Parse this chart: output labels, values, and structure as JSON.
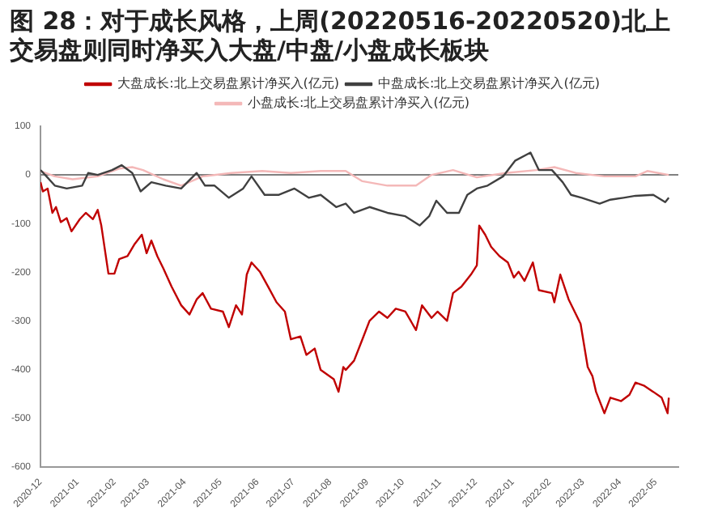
{
  "chart_data": {
    "type": "line",
    "title": "图 28：对于成长风格，上周(20220516-20220520)北上交易盘则同时净买入大盘/中盘/小盘成长板块",
    "xlim": [
      "2020-12",
      "2022-05-20"
    ],
    "xticks": [
      "2020-12",
      "2021-01",
      "2021-02",
      "2021-03",
      "2021-04",
      "2021-05",
      "2021-06",
      "2021-07",
      "2021-08",
      "2021-09",
      "2021-10",
      "2021-11",
      "2021-12",
      "2022-01",
      "2022-02",
      "2022-03",
      "2022-04",
      "2022-05"
    ],
    "ylim": [
      -600,
      100
    ],
    "yticks": [
      -600,
      -500,
      -400,
      -300,
      -200,
      -100,
      0,
      100
    ],
    "grid": false,
    "legend": "top",
    "marker": "none",
    "line_style": "solid",
    "ref_lines": [
      {
        "axis": "y",
        "value": 0,
        "color": "#808080"
      }
    ],
    "series": [
      {
        "name": "大盘成长:北上交易盘累计净买入(亿元)",
        "color": "#c00000",
        "x": [
          "2020-12-01",
          "2020-12-03",
          "2020-12-07",
          "2020-12-11",
          "2020-12-14",
          "2020-12-18",
          "2020-12-23",
          "2020-12-27",
          "2021-01-03",
          "2021-01-08",
          "2021-01-14",
          "2021-01-18",
          "2021-01-21",
          "2021-01-27",
          "2021-02-01",
          "2021-02-05",
          "2021-02-12",
          "2021-02-18",
          "2021-02-24",
          "2021-02-28",
          "2021-03-04",
          "2021-03-09",
          "2021-03-14",
          "2021-03-21",
          "2021-03-29",
          "2021-04-05",
          "2021-04-11",
          "2021-04-16",
          "2021-04-23",
          "2021-05-03",
          "2021-05-08",
          "2021-05-14",
          "2021-05-19",
          "2021-05-23",
          "2021-05-27",
          "2021-06-03",
          "2021-06-10",
          "2021-06-17",
          "2021-06-24",
          "2021-06-29",
          "2021-07-07",
          "2021-07-12",
          "2021-07-19",
          "2021-07-24",
          "2021-08-04",
          "2021-08-08",
          "2021-08-12",
          "2021-08-14",
          "2021-08-21",
          "2021-08-28",
          "2021-09-03",
          "2021-09-11",
          "2021-09-18",
          "2021-09-25",
          "2021-10-03",
          "2021-10-12",
          "2021-10-17",
          "2021-10-25",
          "2021-10-30",
          "2021-11-07",
          "2021-11-12",
          "2021-11-19",
          "2021-11-27",
          "2021-12-02",
          "2021-12-04",
          "2021-12-09",
          "2021-12-14",
          "2021-12-21",
          "2021-12-28",
          "2022-01-02",
          "2022-01-06",
          "2022-01-11",
          "2022-01-18",
          "2022-01-23",
          "2022-02-03",
          "2022-02-05",
          "2022-02-10",
          "2022-02-17",
          "2022-02-27",
          "2022-03-05",
          "2022-03-09",
          "2022-03-12",
          "2022-03-19",
          "2022-03-24",
          "2022-04-02",
          "2022-04-09",
          "2022-04-14",
          "2022-04-21",
          "2022-04-29",
          "2022-05-06",
          "2022-05-11",
          "2022-05-12"
        ],
        "values": [
          -15,
          -34,
          -28,
          -78,
          -66,
          -97,
          -89,
          -116,
          -91,
          -78,
          -91,
          -72,
          -104,
          -203,
          -203,
          -173,
          -167,
          -142,
          -123,
          -161,
          -135,
          -167,
          -192,
          -230,
          -268,
          -287,
          -256,
          -243,
          -275,
          -281,
          -313,
          -268,
          -287,
          -205,
          -180,
          -199,
          -230,
          -262,
          -281,
          -338,
          -332,
          -370,
          -357,
          -401,
          -420,
          -446,
          -395,
          -401,
          -382,
          -338,
          -300,
          -281,
          -294,
          -275,
          -281,
          -319,
          -268,
          -294,
          -281,
          -300,
          -243,
          -230,
          -205,
          -186,
          -104,
          -123,
          -148,
          -167,
          -180,
          -211,
          -199,
          -218,
          -180,
          -237,
          -243,
          -262,
          -205,
          -256,
          -306,
          -395,
          -414,
          -446,
          -490,
          -458,
          -465,
          -452,
          -427,
          -433,
          -446,
          -458,
          -490,
          -458
        ]
      },
      {
        "name": "中盘成长:北上交易盘累计净买入(亿元)",
        "color": "#404040",
        "x": [
          "2020-12-01",
          "2020-12-06",
          "2020-12-13",
          "2020-12-23",
          "2021-01-05",
          "2021-01-10",
          "2021-01-18",
          "2021-01-30",
          "2021-02-07",
          "2021-02-16",
          "2021-02-23",
          "2021-03-04",
          "2021-03-16",
          "2021-03-29",
          "2021-04-11",
          "2021-04-18",
          "2021-04-26",
          "2021-05-08",
          "2021-05-20",
          "2021-05-27",
          "2021-06-07",
          "2021-06-19",
          "2021-07-02",
          "2021-07-14",
          "2021-07-24",
          "2021-08-06",
          "2021-08-14",
          "2021-08-21",
          "2021-09-03",
          "2021-09-18",
          "2021-10-03",
          "2021-10-15",
          "2021-10-23",
          "2021-10-29",
          "2021-11-07",
          "2021-11-17",
          "2021-11-24",
          "2021-12-02",
          "2021-12-11",
          "2021-12-24",
          "2022-01-03",
          "2022-01-16",
          "2022-01-23",
          "2022-02-03",
          "2022-02-12",
          "2022-02-19",
          "2022-02-28",
          "2022-03-15",
          "2022-03-24",
          "2022-04-04",
          "2022-04-14",
          "2022-04-29",
          "2022-05-09",
          "2022-05-12"
        ],
        "values": [
          10,
          -3,
          -22,
          -28,
          -22,
          4,
          0,
          10,
          20,
          4,
          -34,
          -15,
          -22,
          -28,
          4,
          -22,
          -22,
          -47,
          -28,
          -3,
          -41,
          -41,
          -28,
          -47,
          -41,
          -66,
          -59,
          -78,
          -66,
          -78,
          -85,
          -104,
          -85,
          -53,
          -78,
          -78,
          -41,
          -28,
          -22,
          -3,
          29,
          46,
          10,
          10,
          -15,
          -41,
          -47,
          -59,
          -51,
          -47,
          -43,
          -41,
          -56,
          -47
        ]
      },
      {
        "name": "小盘成长:北上交易盘累计净买入(亿元)",
        "color": "#f4b8b8",
        "x": [
          "2020-12-01",
          "2020-12-13",
          "2020-12-28",
          "2021-01-18",
          "2021-02-05",
          "2021-02-16",
          "2021-02-25",
          "2021-03-14",
          "2021-03-29",
          "2021-04-16",
          "2021-05-10",
          "2021-06-05",
          "2021-06-29",
          "2021-07-24",
          "2021-08-14",
          "2021-08-28",
          "2021-09-18",
          "2021-10-12",
          "2021-10-25",
          "2021-11-12",
          "2021-12-02",
          "2021-12-26",
          "2022-01-21",
          "2022-02-05",
          "2022-02-23",
          "2022-03-19",
          "2022-04-14",
          "2022-04-24",
          "2022-05-12"
        ],
        "values": [
          8,
          -3,
          -9,
          -3,
          13,
          16,
          10,
          -9,
          -22,
          -3,
          4,
          8,
          4,
          8,
          8,
          -13,
          -22,
          -22,
          0,
          10,
          -5,
          4,
          10,
          16,
          4,
          -3,
          -3,
          8,
          0
        ]
      }
    ]
  }
}
